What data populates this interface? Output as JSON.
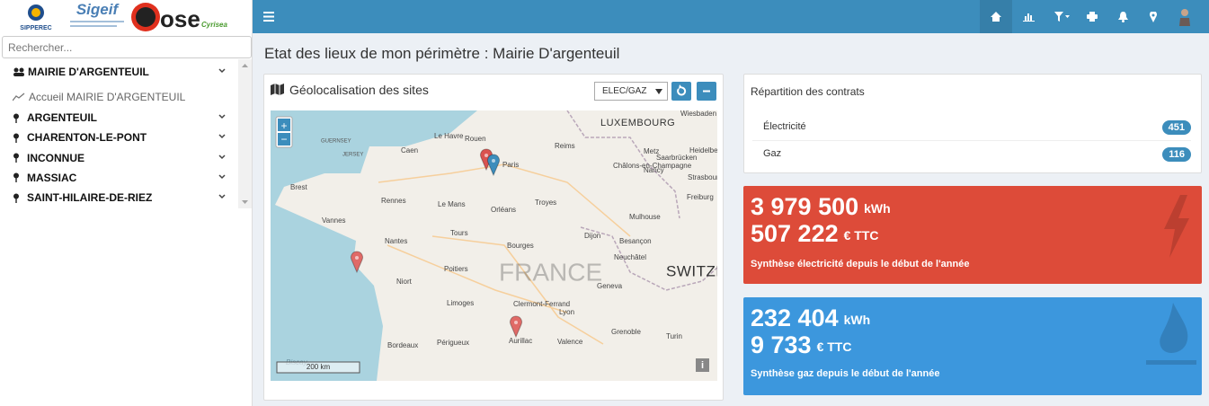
{
  "logos": {
    "sipperec": "SIPPEREC",
    "sigeif": "Sigeif",
    "ose": "ose",
    "cyrisea": "Cyrisea"
  },
  "sidebar": {
    "search_placeholder": "Rechercher...",
    "group": "MAIRIE D'ARGENTEUIL",
    "home_link": "Accueil MAIRIE D'ARGENTEUIL",
    "sites": [
      "ARGENTEUIL",
      "CHARENTON-LE-PONT",
      "INCONNUE",
      "MASSIAC",
      "SAINT-HILAIRE-DE-RIEZ"
    ]
  },
  "page_title": "Etat des lieux de mon périmètre : Mairie D'argenteuil",
  "map_panel": {
    "title": "Géolocalisation des sites",
    "filter": "ELEC/GAZ",
    "zoom_in": "+",
    "zoom_out": "−",
    "info": "i",
    "scale": "200 km",
    "labels": [
      "LUXEMBOURG",
      "Wiesbaden",
      "GUERNSEY",
      "JERSEY",
      "Caen",
      "Le Havre",
      "Rouen",
      "Reims",
      "Paris",
      "Metz",
      "Heidelberg",
      "Saarbrücken",
      "Châlons-en-Champagne",
      "Nancy",
      "Strasbourg",
      "Brest",
      "Rennes",
      "Le Mans",
      "Orléans",
      "Troyes",
      "Freiburg",
      "Mulhouse",
      "Vannes",
      "Nantes",
      "Tours",
      "Bourges",
      "Dijon",
      "Besançon",
      "Neuchâtel",
      "FRANCE",
      "SWITZERLAND",
      "Poitiers",
      "Niort",
      "Geneva",
      "Limoges",
      "Clermont-Ferrand",
      "Lyon",
      "Bordeaux",
      "Périgueux",
      "Aurillac",
      "Valence",
      "Grenoble",
      "Turin",
      "Biscay"
    ]
  },
  "contracts": {
    "title": "Répartition des contrats",
    "rows": [
      {
        "label": "Électricité",
        "count": 451
      },
      {
        "label": "Gaz",
        "count": 116
      }
    ]
  },
  "electricity": {
    "energy": "3 979 500",
    "energy_unit": "kWh",
    "cost": "507 222",
    "cost_unit": "€ TTC",
    "caption": "Synthèse électricité depuis le début de l'année"
  },
  "gas": {
    "energy": "232 404",
    "energy_unit": "kWh",
    "cost": "9 733",
    "cost_unit": "€ TTC",
    "caption": "Synthèse gaz depuis le début de l'année"
  }
}
